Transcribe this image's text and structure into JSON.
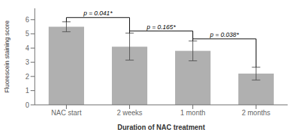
{
  "chart_data": {
    "type": "bar",
    "categories": [
      "NAC start",
      "2 weeks",
      "1 month",
      "2 months"
    ],
    "values": [
      5.5,
      4.1,
      3.8,
      2.2
    ],
    "errors": [
      0.35,
      0.95,
      0.7,
      0.45
    ],
    "color": "#b0b0b0",
    "xlabel": "Duration of NAC treatment",
    "ylabel": "Fluorescein staining score",
    "ylim": [
      0,
      6.8
    ],
    "yticks": [
      0,
      1,
      2,
      3,
      4,
      5,
      6
    ],
    "annotations": [
      {
        "text": "p = 0.041*",
        "left": "NAC start",
        "right": "2 weeks",
        "y": 6.15
      },
      {
        "text": "p = 0.165*",
        "left": "2 weeks",
        "right": "1 month",
        "y": 5.2
      },
      {
        "text": "p = 0.038*",
        "left": "1 month",
        "right": "2 months",
        "y": 4.65
      }
    ]
  }
}
